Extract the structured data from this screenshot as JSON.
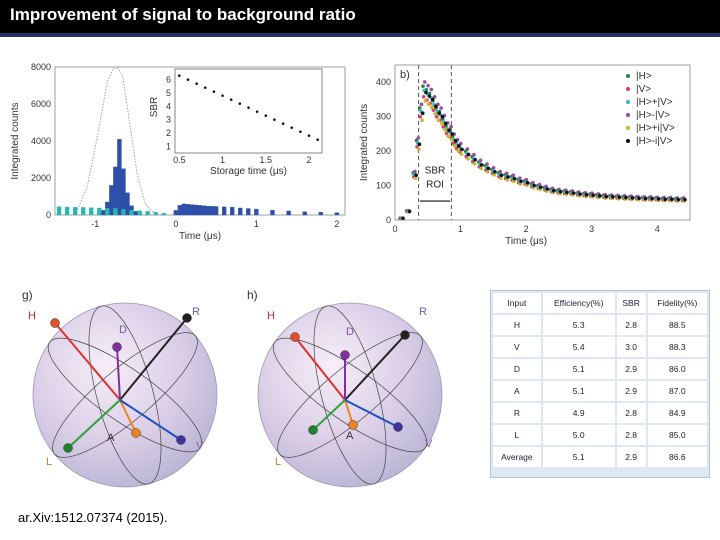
{
  "header": {
    "title": "Improvement of signal to background ratio"
  },
  "citation": "ar.Xiv:1512.07374 (2015).",
  "chart_data": [
    {
      "type": "bar",
      "ylabel": "Integrated counts",
      "xlabel": "Time (μs)",
      "yticks": [
        "0",
        "2000",
        "4000",
        "6000",
        "8000"
      ],
      "xticks": [
        "-1",
        "0",
        "1",
        "2"
      ],
      "ylim": [
        0,
        8000
      ],
      "xlim": [
        -1.5,
        2.1
      ],
      "series": [
        {
          "name": "blue",
          "color": "#2d4fa8",
          "x": [
            -0.95,
            -0.9,
            -0.85,
            -0.8,
            -0.75,
            -0.7,
            -0.65,
            -0.6,
            -0.55,
            -0.5,
            -0.45,
            0,
            0.05,
            0.1,
            0.15,
            0.2,
            0.25,
            0.3,
            0.35,
            0.4,
            0.45,
            0.5,
            0.6,
            0.7,
            0.8,
            0.9,
            1.0,
            1.2,
            1.4,
            1.6,
            1.8,
            2.0
          ],
          "values": [
            100,
            250,
            700,
            1600,
            2600,
            4100,
            2500,
            1200,
            500,
            200,
            100,
            250,
            520,
            600,
            580,
            560,
            540,
            520,
            500,
            480,
            470,
            460,
            440,
            420,
            380,
            350,
            320,
            260,
            220,
            180,
            150,
            120
          ]
        },
        {
          "name": "cyan",
          "color": "#2ab5b5",
          "x": [
            -1.45,
            -1.35,
            -1.25,
            -1.15,
            -1.05,
            -0.95,
            -0.85,
            -0.75,
            -0.65,
            -0.55,
            -0.45,
            -0.35,
            -0.25,
            -0.15
          ],
          "values": [
            450,
            430,
            420,
            410,
            400,
            380,
            370,
            360,
            300,
            260,
            230,
            200,
            150,
            100
          ]
        }
      ],
      "dotted_curve": {
        "x": [
          -1.25,
          -1.1,
          -0.95,
          -0.85,
          -0.78,
          -0.72,
          -0.66,
          -0.58,
          -0.48,
          -0.38,
          -0.25
        ],
        "y": [
          0,
          1500,
          4800,
          7200,
          7900,
          7950,
          7500,
          5200,
          2200,
          600,
          0
        ]
      },
      "inset": {
        "type": "scatter",
        "ylabel": "SBR",
        "xlabel": "Storage time (μs)",
        "yticks": [
          "1",
          "2",
          "3",
          "4",
          "5",
          "6"
        ],
        "xticks": [
          "0.5",
          "1",
          "1.5",
          "2"
        ],
        "xlim": [
          0.45,
          2.15
        ],
        "ylim": [
          0.5,
          6.8
        ],
        "x": [
          0.5,
          0.6,
          0.7,
          0.8,
          0.9,
          1.0,
          1.1,
          1.2,
          1.3,
          1.4,
          1.5,
          1.6,
          1.7,
          1.8,
          1.9,
          2.0,
          2.1
        ],
        "y": [
          6.3,
          6.0,
          5.7,
          5.4,
          5.1,
          4.8,
          4.5,
          4.2,
          3.9,
          3.6,
          3.3,
          3.0,
          2.7,
          2.4,
          2.1,
          1.8,
          1.5
        ]
      }
    },
    {
      "type": "scatter",
      "panel": "b)",
      "ylabel": "Integrated counts",
      "xlabel": "Time (μs)",
      "yticks": [
        "0",
        "100",
        "200",
        "300",
        "400"
      ],
      "xticks": [
        "0",
        "1",
        "2",
        "3",
        "4"
      ],
      "xlim": [
        0,
        4.5
      ],
      "ylim": [
        0,
        450
      ],
      "roi_label": [
        "SBR",
        "ROI"
      ],
      "legend_position": "top-right",
      "series": [
        {
          "name": "|H>",
          "color": "#1a8a3a"
        },
        {
          "name": "|V>",
          "color": "#e03a70"
        },
        {
          "name": "|H>+|V>",
          "color": "#2fb8c0"
        },
        {
          "name": "|H>-|V>",
          "color": "#9a4aa0"
        },
        {
          "name": "|H>+i|V>",
          "color": "#c8b820"
        },
        {
          "name": "|H>-i|V>",
          "color": "#111111"
        }
      ],
      "x": [
        0.1,
        0.2,
        0.3,
        0.35,
        0.4,
        0.45,
        0.5,
        0.55,
        0.6,
        0.65,
        0.7,
        0.75,
        0.8,
        0.85,
        0.9,
        0.95,
        1.0,
        1.1,
        1.2,
        1.3,
        1.4,
        1.5,
        1.6,
        1.7,
        1.8,
        1.9,
        2.0,
        2.1,
        2.2,
        2.3,
        2.4,
        2.5,
        2.6,
        2.7,
        2.8,
        2.9,
        3.0,
        3.1,
        3.2,
        3.3,
        3.4,
        3.5,
        3.6,
        3.7,
        3.8,
        3.9,
        4.0,
        4.1,
        4.2,
        4.3,
        4.4
      ],
      "y": [
        5,
        25,
        130,
        220,
        310,
        370,
        360,
        350,
        330,
        310,
        300,
        280,
        260,
        250,
        230,
        215,
        205,
        190,
        175,
        160,
        150,
        140,
        130,
        125,
        120,
        112,
        108,
        100,
        95,
        90,
        85,
        82,
        80,
        78,
        75,
        73,
        72,
        70,
        68,
        67,
        66,
        65,
        64,
        63,
        62,
        62,
        61,
        60,
        60,
        59,
        59
      ]
    }
  ],
  "spheres": [
    {
      "panel": "g)",
      "labels": {
        "H": "H",
        "R": "R",
        "D": "D",
        "A": "A",
        "V": "V",
        "L": "L"
      }
    },
    {
      "panel": "h)",
      "labels": {
        "H": "H",
        "R": "R",
        "D": "D",
        "A": "A",
        "V": "V",
        "L": "L"
      }
    }
  ],
  "table": {
    "headers": [
      "Input",
      "Efficiency(%)",
      "SBR",
      "Fidelity(%)"
    ],
    "rows": [
      [
        "H",
        "5.3",
        "2.8",
        "88.5"
      ],
      [
        "V",
        "5.4",
        "3.0",
        "88.3"
      ],
      [
        "D",
        "5.1",
        "2.9",
        "86.0"
      ],
      [
        "A",
        "5.1",
        "2.9",
        "87.0"
      ],
      [
        "R",
        "4.9",
        "2.8",
        "84.9"
      ],
      [
        "L",
        "5.0",
        "2.8",
        "85.0"
      ],
      [
        "Average",
        "5.1",
        "2.9",
        "86.6"
      ]
    ]
  }
}
